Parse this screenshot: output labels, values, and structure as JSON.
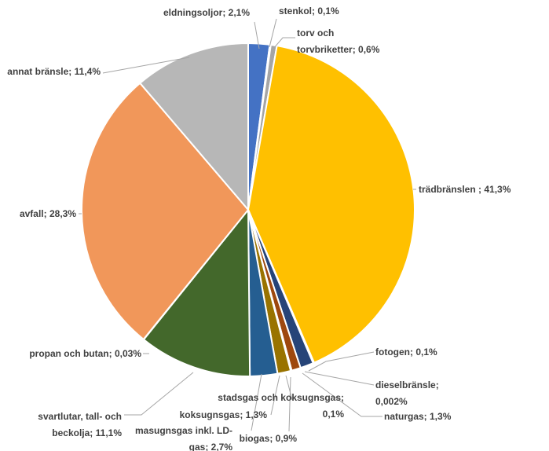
{
  "chart_data": {
    "type": "pie",
    "title": "",
    "slices": [
      {
        "name": "eldningsoljor",
        "value": 2.1,
        "label": "eldningsoljor; 2,1%",
        "color": "#4472c4"
      },
      {
        "name": "stenkol",
        "value": 0.1,
        "label": "stenkol; 0,1%",
        "color": "#ffc000"
      },
      {
        "name": "torv och torvbriketter",
        "value": 0.6,
        "label_lines": [
          "torv och",
          "torvbriketter; 0,6%"
        ],
        "color": "#a5a5a5"
      },
      {
        "name": "trädbränslen",
        "value": 41.3,
        "label": "trädbränslen ; 41,3%",
        "color": "#ffc000"
      },
      {
        "name": "fotogen",
        "value": 0.1,
        "label": "fotogen; 0,1%",
        "color": "#5b9bd5"
      },
      {
        "name": "dieselbränsle",
        "value": 0.002,
        "label_lines": [
          "dieselbränsle;",
          "0,002%"
        ],
        "color": "#70ad47"
      },
      {
        "name": "naturgas",
        "value": 1.3,
        "label": "naturgas; 1,3%",
        "color": "#264478"
      },
      {
        "name": "biogas",
        "value": 0.9,
        "label": "biogas; 0,9%",
        "color": "#9e480e"
      },
      {
        "name": "stadsgas och koksugnsgas",
        "value": 0.1,
        "label_lines": [
          "stadsgas och koksugnsgas;",
          "0,1%"
        ],
        "color": "#636363"
      },
      {
        "name": "koksugnsgas",
        "value": 1.3,
        "label": "koksugnsgas; 1,3%",
        "color": "#997300"
      },
      {
        "name": "masugnsgas inkl. LD-gas",
        "value": 2.7,
        "label_lines": [
          "masugnsgas inkl. LD-",
          "gas; 2,7%"
        ],
        "color": "#255e91"
      },
      {
        "name": "svartlutar, tall- och beckolja",
        "value": 11.1,
        "label_lines": [
          "svartlutar, tall- och",
          "beckolja; 11,1%"
        ],
        "color": "#43682b"
      },
      {
        "name": "propan och butan",
        "value": 0.03,
        "label": "propan och butan; 0,03%",
        "color": "#698ed0"
      },
      {
        "name": "avfall",
        "value": 28.3,
        "label": "avfall; 28,3%",
        "color": "#f1975a"
      },
      {
        "name": "annat bränsle",
        "value": 11.4,
        "label": "annat bränsle; 11,4%",
        "color": "#b7b7b7"
      }
    ]
  }
}
